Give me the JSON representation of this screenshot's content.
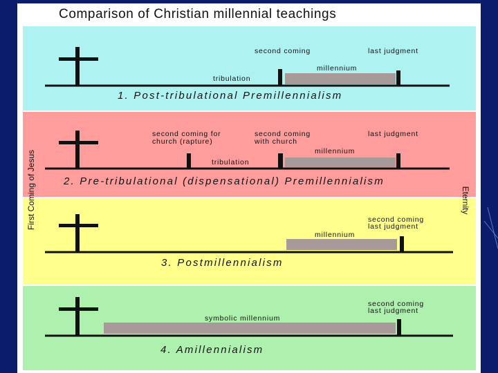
{
  "title": "Comparison of Christian millennial teachings",
  "side_labels": {
    "left": "First Coming of Jesus",
    "right": "Eternity"
  },
  "panels": [
    {
      "title": "1. Post-tribulational Premillennialism",
      "labels": [
        "second coming",
        "last judgment",
        "millennium",
        "tribulation"
      ]
    },
    {
      "title": "2. Pre-tribulational (dispensational) Premillennialism",
      "labels": [
        "second coming for",
        "church (rapture)",
        "second coming",
        "with church",
        "last judgment",
        "millennium",
        "tribulation"
      ]
    },
    {
      "title": "3. Postmillennialism",
      "labels": [
        "second coming",
        "last judgment",
        "millennium"
      ]
    },
    {
      "title": "4. Amillennialism",
      "labels": [
        "second coming",
        "last judgment",
        "symbolic millennium"
      ]
    }
  ]
}
